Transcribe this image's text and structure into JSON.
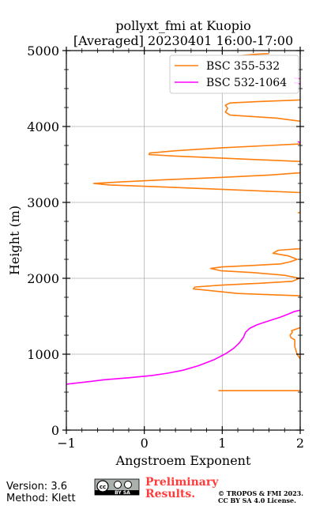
{
  "chart_data": {
    "type": "line",
    "title_line1": "pollyxt_fmi at Kuopio",
    "title_line2": "[Averaged] 20230401 16:00-17:00",
    "xlabel": "Angstroem Exponent",
    "ylabel": "Height (m)",
    "xlim": [
      -1,
      2
    ],
    "ylim": [
      0,
      5000
    ],
    "x_ticks": [
      -1,
      0,
      1,
      2
    ],
    "x_tick_labels": [
      "−1",
      "0",
      "1",
      "2"
    ],
    "y_ticks": [
      0,
      1000,
      2000,
      3000,
      4000,
      5000
    ],
    "y_tick_labels": [
      "0",
      "1000",
      "2000",
      "3000",
      "4000",
      "5000"
    ],
    "grid": true,
    "legend_position": "top-right",
    "series": [
      {
        "name": "BSC 355-532",
        "color": "#ff7f0e",
        "segments": [
          [
            [
              0.95,
              520
            ],
            [
              2.0,
              520
            ]
          ],
          [
            [
              2.0,
              940
            ],
            [
              1.96,
              1000
            ],
            [
              1.93,
              1100
            ],
            [
              1.93,
              1190
            ],
            [
              1.88,
              1220
            ],
            [
              1.87,
              1250
            ],
            [
              1.9,
              1290
            ],
            [
              1.89,
              1310
            ],
            [
              2.0,
              1350
            ]
          ],
          [
            [
              2.0,
              1770
            ],
            [
              1.7,
              1780
            ],
            [
              1.2,
              1800
            ],
            [
              0.63,
              1860
            ],
            [
              0.65,
              1885
            ],
            [
              1.0,
              1910
            ],
            [
              1.5,
              1935
            ],
            [
              1.9,
              1960
            ],
            [
              1.99,
              2000
            ],
            [
              1.8,
              2040
            ],
            [
              1.4,
              2075
            ],
            [
              0.98,
              2100
            ],
            [
              0.85,
              2130
            ],
            [
              1.0,
              2150
            ],
            [
              1.4,
              2170
            ],
            [
              1.75,
              2190
            ],
            [
              1.88,
              2220
            ],
            [
              1.96,
              2250
            ],
            [
              1.85,
              2295
            ],
            [
              1.65,
              2330
            ],
            [
              1.72,
              2370
            ],
            [
              2.0,
              2390
            ]
          ],
          [
            [
              1.97,
              2860
            ],
            [
              2.0,
              2870
            ]
          ],
          [
            [
              2.0,
              3130
            ],
            [
              1.5,
              3150
            ],
            [
              0.8,
              3180
            ],
            [
              0.2,
              3205
            ],
            [
              -0.45,
              3230
            ],
            [
              -0.65,
              3250
            ],
            [
              -0.3,
              3270
            ],
            [
              0.3,
              3300
            ],
            [
              1.0,
              3330
            ],
            [
              1.6,
              3360
            ],
            [
              2.0,
              3390
            ]
          ],
          [
            [
              2.0,
              3540
            ],
            [
              1.3,
              3570
            ],
            [
              0.4,
              3610
            ],
            [
              0.06,
              3630
            ],
            [
              0.07,
              3650
            ],
            [
              0.4,
              3680
            ],
            [
              1.0,
              3720
            ],
            [
              1.6,
              3750
            ],
            [
              2.0,
              3770
            ]
          ],
          [
            [
              2.0,
              4070
            ],
            [
              1.7,
              4110
            ],
            [
              1.1,
              4150
            ],
            [
              1.04,
              4190
            ],
            [
              1.07,
              4240
            ],
            [
              1.04,
              4280
            ],
            [
              1.1,
              4310
            ],
            [
              1.5,
              4330
            ],
            [
              2.0,
              4350
            ]
          ],
          [
            [
              1.2,
              4930
            ],
            [
              1.4,
              4950
            ],
            [
              1.6,
              4960
            ]
          ]
        ]
      },
      {
        "name": "BSC 532-1064",
        "color": "#ff00ff",
        "segments": [
          [
            [
              -1.0,
              605
            ],
            [
              -0.7,
              640
            ],
            [
              -0.5,
              665
            ],
            [
              -0.2,
              690
            ],
            [
              0.1,
              720
            ],
            [
              0.3,
              750
            ],
            [
              0.5,
              790
            ],
            [
              0.7,
              850
            ],
            [
              0.9,
              930
            ],
            [
              1.05,
              1010
            ],
            [
              1.15,
              1080
            ],
            [
              1.22,
              1150
            ],
            [
              1.27,
              1220
            ],
            [
              1.3,
              1290
            ],
            [
              1.35,
              1340
            ],
            [
              1.45,
              1390
            ],
            [
              1.6,
              1440
            ],
            [
              1.75,
              1490
            ],
            [
              1.85,
              1530
            ],
            [
              1.92,
              1560
            ],
            [
              2.0,
              1580
            ]
          ],
          [
            [
              1.97,
              3800
            ],
            [
              2.0,
              3790
            ]
          ],
          [
            [
              1.92,
              4580
            ],
            [
              2.0,
              4560
            ]
          ],
          [
            [
              1.92,
              4640
            ],
            [
              2.0,
              4630
            ]
          ]
        ]
      }
    ]
  },
  "footer": {
    "version": "Version: 3.6",
    "method": "Method: Klett",
    "preliminary_line1": "Preliminary",
    "preliminary_line2": "Results.",
    "license_line1": "© TROPOS & FMI 2023.",
    "license_line2": "CC BY SA 4.0 License.",
    "badge_text": "BY SA"
  }
}
